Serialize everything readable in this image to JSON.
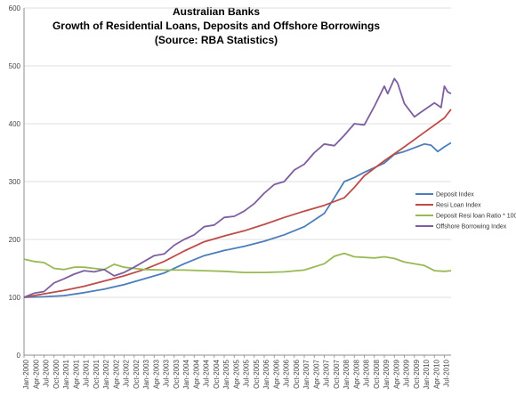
{
  "chart_data": {
    "type": "line",
    "title": [
      "Australian Banks",
      "Growth of Residential Loans, Deposits and Offshore Borrowings",
      "(Source: RBA Statistics)"
    ],
    "xlabel": "",
    "ylabel": "",
    "ylim": [
      0,
      600
    ],
    "yticks": [
      "0",
      "100",
      "200",
      "300",
      "400",
      "500",
      "600"
    ],
    "x_range": [
      "2000-01",
      "2010-09"
    ],
    "xticks": [
      "Jan-2000",
      "Apr-2000",
      "Jul-2000",
      "Oct-2000",
      "Jan-2001",
      "Apr-2001",
      "Jul-2001",
      "Oct-2001",
      "Jan-2002",
      "Apr-2002",
      "Jul-2002",
      "Oct-2002",
      "Jan-2003",
      "Apr-2003",
      "Jul-2003",
      "Oct-2003",
      "Jan-2004",
      "Apr-2004",
      "Jul-2004",
      "Oct-2004",
      "Jan-2005",
      "Apr-2005",
      "Jul-2005",
      "Oct-2005",
      "Jan-2006",
      "Apr-2006",
      "Jul-2006",
      "Oct-2006",
      "Jan-2007",
      "Apr-2007",
      "Jul-2007",
      "Oct-2007",
      "Jan-2008",
      "Apr-2008",
      "Jul-2008",
      "Oct-2008",
      "Jan-2009",
      "Apr-2009",
      "Jul-2009",
      "Oct-2009",
      "Jan-2010",
      "Apr-2010",
      "Jul-2010"
    ],
    "grid": "horizontal",
    "legend_position": "right",
    "series": [
      {
        "name": "Deposit Index",
        "color": "#4A7EBB",
        "points": [
          [
            "2000-01",
            100
          ],
          [
            "2000-07",
            101
          ],
          [
            "2001-01",
            103
          ],
          [
            "2001-07",
            108
          ],
          [
            "2002-01",
            114
          ],
          [
            "2002-07",
            122
          ],
          [
            "2003-01",
            132
          ],
          [
            "2003-07",
            142
          ],
          [
            "2004-01",
            158
          ],
          [
            "2004-07",
            172
          ],
          [
            "2005-01",
            181
          ],
          [
            "2005-07",
            188
          ],
          [
            "2006-01",
            197
          ],
          [
            "2006-07",
            208
          ],
          [
            "2007-01",
            222
          ],
          [
            "2007-07",
            245
          ],
          [
            "2007-10",
            272
          ],
          [
            "2008-01",
            300
          ],
          [
            "2008-04",
            307
          ],
          [
            "2008-07",
            316
          ],
          [
            "2009-01",
            332
          ],
          [
            "2009-04",
            347
          ],
          [
            "2009-07",
            352
          ],
          [
            "2010-01",
            365
          ],
          [
            "2010-03",
            363
          ],
          [
            "2010-05",
            352
          ],
          [
            "2010-07",
            360
          ],
          [
            "2010-09",
            367
          ]
        ]
      },
      {
        "name": "Resi Loan Index",
        "color": "#BE4B48",
        "points": [
          [
            "2000-01",
            100
          ],
          [
            "2000-07",
            106
          ],
          [
            "2001-01",
            112
          ],
          [
            "2001-07",
            119
          ],
          [
            "2002-01",
            128
          ],
          [
            "2002-07",
            137
          ],
          [
            "2003-01",
            148
          ],
          [
            "2003-07",
            162
          ],
          [
            "2004-01",
            180
          ],
          [
            "2004-07",
            196
          ],
          [
            "2005-01",
            206
          ],
          [
            "2005-07",
            215
          ],
          [
            "2006-01",
            226
          ],
          [
            "2006-07",
            238
          ],
          [
            "2007-01",
            249
          ],
          [
            "2007-07",
            259
          ],
          [
            "2008-01",
            272
          ],
          [
            "2008-04",
            290
          ],
          [
            "2008-07",
            310
          ],
          [
            "2009-01",
            336
          ],
          [
            "2009-07",
            360
          ],
          [
            "2010-01",
            385
          ],
          [
            "2010-07",
            410
          ],
          [
            "2010-09",
            425
          ]
        ]
      },
      {
        "name": "Deposit Resi loan Ratio * 100",
        "color": "#98B954",
        "points": [
          [
            "2000-01",
            166
          ],
          [
            "2000-04",
            162
          ],
          [
            "2000-07",
            160
          ],
          [
            "2000-10",
            150
          ],
          [
            "2001-01",
            148
          ],
          [
            "2001-04",
            152
          ],
          [
            "2001-07",
            152
          ],
          [
            "2001-10",
            150
          ],
          [
            "2002-01",
            148
          ],
          [
            "2002-04",
            157
          ],
          [
            "2002-07",
            152
          ],
          [
            "2002-10",
            150
          ],
          [
            "2003-01",
            148
          ],
          [
            "2003-07",
            147
          ],
          [
            "2004-01",
            147
          ],
          [
            "2004-07",
            146
          ],
          [
            "2005-01",
            145
          ],
          [
            "2005-07",
            143
          ],
          [
            "2006-01",
            143
          ],
          [
            "2006-07",
            144
          ],
          [
            "2007-01",
            147
          ],
          [
            "2007-07",
            158
          ],
          [
            "2007-10",
            171
          ],
          [
            "2008-01",
            176
          ],
          [
            "2008-04",
            170
          ],
          [
            "2008-10",
            168
          ],
          [
            "2009-01",
            170
          ],
          [
            "2009-04",
            167
          ],
          [
            "2009-07",
            161
          ],
          [
            "2010-01",
            155
          ],
          [
            "2010-04",
            146
          ],
          [
            "2010-07",
            145
          ],
          [
            "2010-09",
            146
          ]
        ]
      },
      {
        "name": "Offshore Borrowing Index",
        "color": "#7D5FA0",
        "points": [
          [
            "2000-01",
            100
          ],
          [
            "2000-04",
            107
          ],
          [
            "2000-07",
            110
          ],
          [
            "2000-10",
            125
          ],
          [
            "2001-01",
            132
          ],
          [
            "2001-04",
            140
          ],
          [
            "2001-07",
            146
          ],
          [
            "2001-10",
            144
          ],
          [
            "2002-01",
            148
          ],
          [
            "2002-04",
            137
          ],
          [
            "2002-07",
            143
          ],
          [
            "2002-10",
            152
          ],
          [
            "2003-01",
            162
          ],
          [
            "2003-04",
            172
          ],
          [
            "2003-07",
            175
          ],
          [
            "2003-10",
            190
          ],
          [
            "2004-01",
            200
          ],
          [
            "2004-04",
            208
          ],
          [
            "2004-07",
            222
          ],
          [
            "2004-10",
            225
          ],
          [
            "2005-01",
            238
          ],
          [
            "2005-04",
            240
          ],
          [
            "2005-07",
            249
          ],
          [
            "2005-10",
            262
          ],
          [
            "2006-01",
            280
          ],
          [
            "2006-04",
            295
          ],
          [
            "2006-07",
            300
          ],
          [
            "2006-10",
            320
          ],
          [
            "2007-01",
            330
          ],
          [
            "2007-04",
            350
          ],
          [
            "2007-07",
            365
          ],
          [
            "2007-10",
            362
          ],
          [
            "2008-01",
            380
          ],
          [
            "2008-04",
            400
          ],
          [
            "2008-07",
            398
          ],
          [
            "2008-10",
            430
          ],
          [
            "2009-01",
            465
          ],
          [
            "2009-02",
            452
          ],
          [
            "2009-04",
            478
          ],
          [
            "2009-05",
            470
          ],
          [
            "2009-07",
            435
          ],
          [
            "2009-10",
            412
          ],
          [
            "2010-01",
            424
          ],
          [
            "2010-04",
            436
          ],
          [
            "2010-06",
            428
          ],
          [
            "2010-07",
            465
          ],
          [
            "2010-08",
            455
          ],
          [
            "2010-09",
            452
          ]
        ]
      }
    ]
  }
}
